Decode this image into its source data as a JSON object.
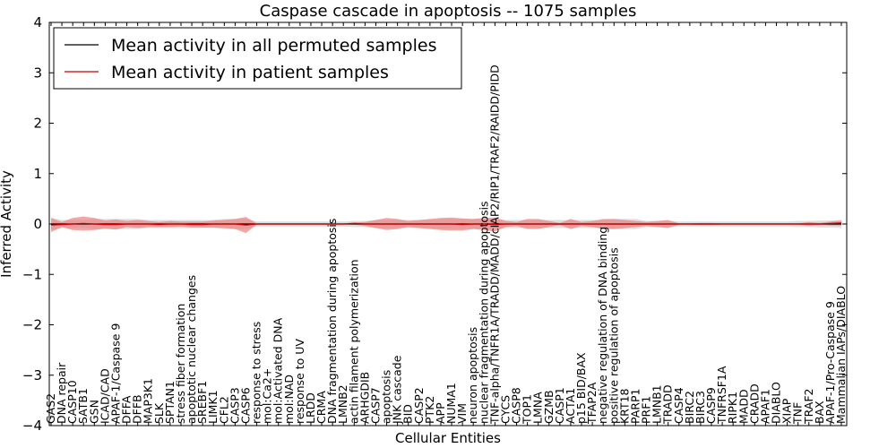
{
  "chart_data": {
    "type": "line",
    "title": "Caspase cascade in apoptosis -- 1075 samples",
    "xlabel": "Cellular Entities",
    "ylabel": "Inferred Activity",
    "ylim": [
      -4,
      4
    ],
    "yticks": [
      "4",
      "3",
      "2",
      "1",
      "0",
      "−1",
      "−2",
      "−3",
      "−4"
    ],
    "grid": false,
    "legend_position": "top-left",
    "categories": [
      "GAS2",
      "DNA repair",
      "CASP10",
      "SATB1",
      "GSN",
      "ICAD/CAD",
      "APAF-1/Caspase 9",
      "DFFA",
      "DFFB",
      "MAP3K1",
      "SLK",
      "SPTAN1",
      "stress fiber formation",
      "apoptotic nuclear changes",
      "SREBF1",
      "LIMK1",
      "CFL2",
      "CASP3",
      "CASP6",
      "response to stress",
      "mol:Ca2+",
      "mol:Activated DNA",
      "mol:NAD",
      "response to UV",
      "LRDD",
      "CRMA",
      "DNA fragmentation during apoptosis",
      "LMNB2",
      "actin filament polymerization",
      "ARHGDIB",
      "CASP7",
      "apoptosis",
      "JNK cascade",
      "BID",
      "CASP2",
      "PTK2",
      "APP",
      "NUMA1",
      "VIM",
      "neuron apoptosis",
      "nuclear fragmentation during apoptosis",
      "TNF-alpha/TNFR1A/TRADD/MADD/cIAP2/RIP1/TRAF2/RAIDD/PIDD",
      "CYCS",
      "CASP8",
      "TOP1",
      "LMNA",
      "GZMB",
      "CASP1",
      "ACTA1",
      "p15 BID/BAX",
      "TFAP2A",
      "negative regulation of DNA binding",
      "positive regulation of apoptosis",
      "KRT18",
      "PARP1",
      "PRF1",
      "LMNB1",
      "TRADD",
      "CASP4",
      "BIRC2",
      "BIRC3",
      "CASP9",
      "TNFRSF1A",
      "RIPK1",
      "MADD",
      "CRADD",
      "APAF1",
      "DIABLO",
      "XIAP",
      "TNF",
      "TRAF2",
      "BAX",
      "APAF-1/Pro-Caspase 9",
      "Mammalian IAPs/DIABLO"
    ],
    "series": [
      {
        "name": "Mean activity in all permuted samples",
        "color": "#000000",
        "band_color": "#d6d6d6",
        "values": [
          0,
          0,
          0,
          0,
          0,
          0,
          0,
          0,
          0,
          0,
          0,
          0,
          0,
          0,
          0,
          0,
          0,
          0,
          0,
          0,
          0,
          0,
          0,
          0,
          0,
          0,
          0,
          0,
          0,
          0,
          0,
          0,
          0,
          0,
          0,
          0,
          0,
          0,
          0,
          0,
          0,
          0,
          0,
          0,
          0,
          0,
          0,
          0,
          0,
          0,
          0,
          0,
          0,
          0,
          0,
          0,
          0,
          0,
          0,
          0,
          0,
          0,
          0,
          0,
          0,
          0,
          0,
          0,
          0,
          0,
          0,
          0,
          0,
          0
        ],
        "band": [
          0.12,
          0.08,
          0.08,
          0.08,
          0.1,
          0.1,
          0.1,
          0.1,
          0.1,
          0.08,
          0.08,
          0.08,
          0.08,
          0.08,
          0.08,
          0.08,
          0.1,
          0.1,
          0.1,
          0.05,
          0.05,
          0.05,
          0.05,
          0.05,
          0.05,
          0.05,
          0.05,
          0.05,
          0.06,
          0.06,
          0.08,
          0.08,
          0.08,
          0.08,
          0.08,
          0.08,
          0.1,
          0.1,
          0.1,
          0.1,
          0.1,
          0.1,
          0.08,
          0.08,
          0.08,
          0.08,
          0.08,
          0.08,
          0.08,
          0.08,
          0.08,
          0.08,
          0.1,
          0.1,
          0.1,
          0.06,
          0.06,
          0.06,
          0.05,
          0.05,
          0.05,
          0.05,
          0.05,
          0.05,
          0.05,
          0.05,
          0.05,
          0.05,
          0.05,
          0.06,
          0.06,
          0.07,
          0.07,
          0.08
        ]
      },
      {
        "name": "Mean activity in patient samples",
        "color": "#cc0000",
        "band_color": "#ee8080",
        "values": [
          -0.02,
          -0.01,
          0.0,
          0.01,
          0.0,
          -0.01,
          -0.01,
          0.0,
          0.0,
          0.0,
          -0.01,
          0.0,
          0.0,
          -0.01,
          -0.01,
          0.0,
          0.0,
          0.0,
          -0.02,
          0.0,
          0.0,
          0.0,
          0.0,
          0.0,
          0.0,
          0.0,
          0.0,
          0.0,
          0.01,
          0.0,
          0.0,
          0.0,
          0.0,
          0.0,
          0.0,
          0.0,
          0.0,
          0.0,
          -0.01,
          0.0,
          0.0,
          -0.01,
          0.0,
          0.0,
          0.0,
          0.0,
          0.0,
          0.0,
          0.0,
          0.0,
          0.0,
          0.0,
          0.0,
          0.0,
          0.0,
          0.0,
          0.0,
          0.0,
          0.0,
          0.0,
          0.0,
          0.0,
          0.0,
          0.0,
          0.0,
          0.0,
          0.0,
          0.0,
          0.0,
          0.0,
          0.0,
          0.0,
          0.01,
          0.02
        ],
        "band": [
          0.14,
          0.05,
          0.12,
          0.14,
          0.12,
          0.08,
          0.1,
          0.06,
          0.08,
          0.06,
          0.05,
          0.06,
          0.05,
          0.06,
          0.06,
          0.07,
          0.08,
          0.1,
          0.16,
          0.01,
          0.01,
          0.01,
          0.01,
          0.01,
          0.01,
          0.01,
          0.01,
          0.01,
          0.02,
          0.04,
          0.08,
          0.12,
          0.1,
          0.06,
          0.08,
          0.1,
          0.12,
          0.13,
          0.12,
          0.1,
          0.12,
          0.14,
          0.06,
          0.04,
          0.1,
          0.1,
          0.06,
          0.02,
          0.1,
          0.04,
          0.06,
          0.1,
          0.1,
          0.08,
          0.06,
          0.04,
          0.06,
          0.08,
          0.01,
          0.01,
          0.02,
          0.02,
          0.01,
          0.01,
          0.01,
          0.01,
          0.01,
          0.01,
          0.01,
          0.01,
          0.04,
          0.02,
          0.04,
          0.05
        ]
      }
    ]
  }
}
